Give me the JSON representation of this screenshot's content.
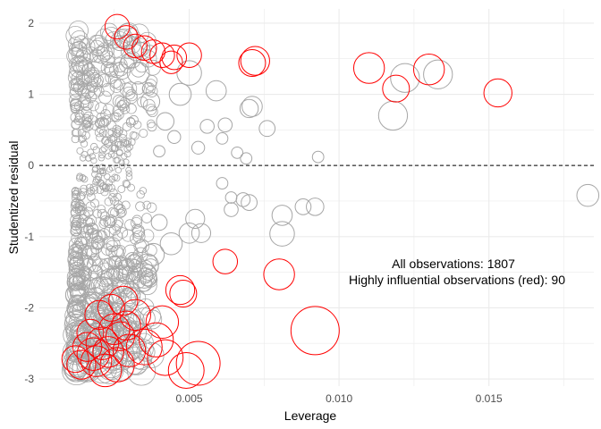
{
  "chart_data": {
    "type": "scatter",
    "title": "",
    "xlabel": "Leverage",
    "ylabel": "Studentized residual",
    "xlim": [
      0.0,
      0.0185
    ],
    "ylim": [
      -3.1,
      2.2
    ],
    "x_ticks": [
      0.005,
      0.01,
      0.015
    ],
    "x_tick_labels": [
      "0.005",
      "0.010",
      "0.015"
    ],
    "y_ticks": [
      -3,
      -2,
      -1,
      0,
      1,
      2
    ],
    "y_tick_labels": [
      "-3",
      "-2",
      "-1",
      "0",
      "1",
      "2"
    ],
    "reference_line": {
      "y": 0,
      "style": "dashed"
    },
    "grid": true,
    "annotations": [
      "All observations: 1807",
      "Highly influential observations (red): 90"
    ],
    "colors": {
      "normal": "#a6a6a6",
      "influential": "#ff0000",
      "grid": "#ebebeb"
    },
    "size_encoding": "Cook's distance (circle size)",
    "series": [
      {
        "group": "normal",
        "points": [
          {
            "x": 0.0133,
            "y": 1.28,
            "s": 0.3
          },
          {
            "x": 0.0122,
            "y": 1.23,
            "s": 0.3
          },
          {
            "x": 0.0118,
            "y": 0.7,
            "s": 0.3
          },
          {
            "x": 0.0183,
            "y": -0.42,
            "s": 0.15
          },
          {
            "x": 0.0093,
            "y": 0.12,
            "s": 0.02
          },
          {
            "x": 0.0092,
            "y": -0.58,
            "s": 0.08
          },
          {
            "x": 0.0088,
            "y": -0.58,
            "s": 0.06
          },
          {
            "x": 0.0081,
            "y": -0.7,
            "s": 0.12
          },
          {
            "x": 0.0081,
            "y": -0.96,
            "s": 0.2
          },
          {
            "x": 0.0076,
            "y": 0.52,
            "s": 0.06
          },
          {
            "x": 0.0071,
            "y": 0.83,
            "s": 0.12
          },
          {
            "x": 0.007,
            "y": 0.8,
            "s": 0.09
          },
          {
            "x": 0.0069,
            "y": 0.1,
            "s": 0.02
          },
          {
            "x": 0.0066,
            "y": 0.18,
            "s": 0.02
          },
          {
            "x": 0.0062,
            "y": 0.57,
            "s": 0.04
          },
          {
            "x": 0.0061,
            "y": 0.38,
            "s": 0.02
          },
          {
            "x": 0.0061,
            "y": -0.25,
            "s": 0.02
          },
          {
            "x": 0.0064,
            "y": -0.45,
            "s": 0.02
          },
          {
            "x": 0.0068,
            "y": -0.48,
            "s": 0.04
          },
          {
            "x": 0.007,
            "y": -0.52,
            "s": 0.06
          },
          {
            "x": 0.0064,
            "y": -0.62,
            "s": 0.04
          },
          {
            "x": 0.0059,
            "y": 1.05,
            "s": 0.12
          },
          {
            "x": 0.0056,
            "y": 0.55,
            "s": 0.04
          },
          {
            "x": 0.0053,
            "y": 0.25,
            "s": 0.03
          },
          {
            "x": 0.0052,
            "y": -0.75,
            "s": 0.1
          },
          {
            "x": 0.0054,
            "y": -0.95,
            "s": 0.1
          },
          {
            "x": 0.005,
            "y": -0.95,
            "s": 0.12
          },
          {
            "x": 0.005,
            "y": 1.3,
            "s": 0.2
          },
          {
            "x": 0.0047,
            "y": 1.0,
            "s": 0.15
          },
          {
            "x": 0.0045,
            "y": 0.4,
            "s": 0.03
          },
          {
            "x": 0.0044,
            "y": -1.1,
            "s": 0.15
          },
          {
            "x": 0.0042,
            "y": 0.62,
            "s": 0.08
          },
          {
            "x": 0.0038,
            "y": -1.25,
            "s": 0.15
          },
          {
            "x": 0.0036,
            "y": -1.4,
            "s": 0.16
          },
          {
            "x": 0.0035,
            "y": -1.55,
            "s": 0.2
          },
          {
            "x": 0.004,
            "y": 0.2,
            "s": 0.02
          },
          {
            "x": 0.0033,
            "y": 1.3,
            "s": 0.15
          },
          {
            "x": 0.004,
            "y": -0.8,
            "s": 0.06
          },
          {
            "x": 0.0037,
            "y": 0.9,
            "s": 0.1
          }
        ]
      },
      {
        "group": "influential",
        "points": [
          {
            "x": 0.0092,
            "y": -2.32,
            "s": 1.0
          },
          {
            "x": 0.008,
            "y": -1.53,
            "s": 0.35
          },
          {
            "x": 0.0062,
            "y": -1.35,
            "s": 0.2
          },
          {
            "x": 0.0153,
            "y": 1.02,
            "s": 0.28
          },
          {
            "x": 0.013,
            "y": 1.35,
            "s": 0.35
          },
          {
            "x": 0.0119,
            "y": 1.08,
            "s": 0.25
          },
          {
            "x": 0.011,
            "y": 1.37,
            "s": 0.35
          },
          {
            "x": 0.0072,
            "y": 1.47,
            "s": 0.3
          },
          {
            "x": 0.0071,
            "y": 1.44,
            "s": 0.25
          },
          {
            "x": 0.0053,
            "y": -2.78,
            "s": 0.8
          },
          {
            "x": 0.0049,
            "y": -2.88,
            "s": 0.5
          },
          {
            "x": 0.0048,
            "y": -1.8,
            "s": 0.25
          },
          {
            "x": 0.0047,
            "y": -1.75,
            "s": 0.3
          },
          {
            "x": 0.0042,
            "y": -2.7,
            "s": 0.5
          },
          {
            "x": 0.0041,
            "y": -2.2,
            "s": 0.4
          },
          {
            "x": 0.0039,
            "y": -2.45,
            "s": 0.45
          },
          {
            "x": 0.0035,
            "y": -2.55,
            "s": 0.5
          },
          {
            "x": 0.0032,
            "y": -2.1,
            "s": 0.35
          },
          {
            "x": 0.003,
            "y": -2.6,
            "s": 0.4
          },
          {
            "x": 0.0028,
            "y": -1.9,
            "s": 0.3
          },
          {
            "x": 0.0026,
            "y": -2.8,
            "s": 0.45
          },
          {
            "x": 0.0025,
            "y": -2.3,
            "s": 0.35
          },
          {
            "x": 0.0022,
            "y": -2.88,
            "s": 0.4
          },
          {
            "x": 0.0021,
            "y": -2.5,
            "s": 0.4
          },
          {
            "x": 0.002,
            "y": -2.1,
            "s": 0.3
          },
          {
            "x": 0.0018,
            "y": -2.65,
            "s": 0.4
          },
          {
            "x": 0.0016,
            "y": -2.55,
            "s": 0.3
          },
          {
            "x": 0.0014,
            "y": -2.8,
            "s": 0.3
          },
          {
            "x": 0.0012,
            "y": -2.72,
            "s": 0.25
          },
          {
            "x": 0.0024,
            "y": -2.0,
            "s": 0.25
          },
          {
            "x": 0.0027,
            "y": -2.4,
            "s": 0.3
          },
          {
            "x": 0.0019,
            "y": -2.75,
            "s": 0.35
          },
          {
            "x": 0.0023,
            "y": -2.62,
            "s": 0.35
          },
          {
            "x": 0.0017,
            "y": -2.35,
            "s": 0.25
          },
          {
            "x": 0.0029,
            "y": -2.25,
            "s": 0.3
          },
          {
            "x": 0.0026,
            "y": 1.95,
            "s": 0.2
          },
          {
            "x": 0.0029,
            "y": 1.8,
            "s": 0.18
          },
          {
            "x": 0.0032,
            "y": 1.68,
            "s": 0.18
          },
          {
            "x": 0.0035,
            "y": 1.65,
            "s": 0.2
          },
          {
            "x": 0.0038,
            "y": 1.6,
            "s": 0.18
          },
          {
            "x": 0.0041,
            "y": 1.55,
            "s": 0.2
          },
          {
            "x": 0.0045,
            "y": 1.52,
            "s": 0.2
          },
          {
            "x": 0.005,
            "y": 1.55,
            "s": 0.2
          },
          {
            "x": 0.0044,
            "y": 1.45,
            "s": 0.16
          }
        ]
      }
    ]
  }
}
